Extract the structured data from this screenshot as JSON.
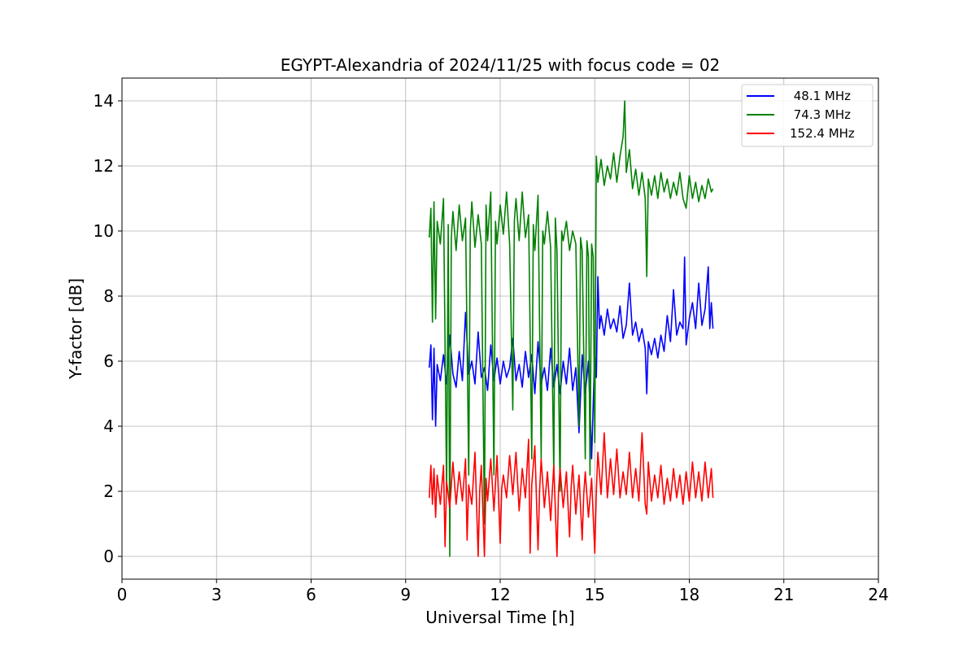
{
  "chart_data": {
    "type": "line",
    "title": "EGYPT-Alexandria of 2024/11/25 with focus code = 02",
    "xlabel": "Universal Time [h]",
    "ylabel": "Y-factor [dB]",
    "xlim": [
      0,
      24
    ],
    "ylim": [
      -0.7,
      14.7
    ],
    "xticks": [
      0,
      3,
      6,
      9,
      12,
      15,
      18,
      21,
      24
    ],
    "yticks": [
      0,
      2,
      4,
      6,
      8,
      10,
      12,
      14
    ],
    "grid": true,
    "legend_position": "top-right",
    "series": [
      {
        "name": " 48.1 MHz",
        "color": "#0000ff",
        "points": [
          [
            9.75,
            5.8
          ],
          [
            9.8,
            6.5
          ],
          [
            9.85,
            4.2
          ],
          [
            9.9,
            6.4
          ],
          [
            9.95,
            4.0
          ],
          [
            10.0,
            5.9
          ],
          [
            10.1,
            5.4
          ],
          [
            10.2,
            6.2
          ],
          [
            10.3,
            5.3
          ],
          [
            10.4,
            6.8
          ],
          [
            10.5,
            5.6
          ],
          [
            10.6,
            5.2
          ],
          [
            10.7,
            6.3
          ],
          [
            10.8,
            5.4
          ],
          [
            10.9,
            7.5
          ],
          [
            11.0,
            5.6
          ],
          [
            11.1,
            6.0
          ],
          [
            11.2,
            5.3
          ],
          [
            11.3,
            6.9
          ],
          [
            11.4,
            5.5
          ],
          [
            11.5,
            5.8
          ],
          [
            11.6,
            5.1
          ],
          [
            11.7,
            6.5
          ],
          [
            11.8,
            5.4
          ],
          [
            11.9,
            6.1
          ],
          [
            12.0,
            5.3
          ],
          [
            12.1,
            6.0
          ],
          [
            12.2,
            5.5
          ],
          [
            12.3,
            5.8
          ],
          [
            12.4,
            6.7
          ],
          [
            12.5,
            5.4
          ],
          [
            12.6,
            5.9
          ],
          [
            12.7,
            5.2
          ],
          [
            12.8,
            6.3
          ],
          [
            12.9,
            5.5
          ],
          [
            13.0,
            6.2
          ],
          [
            13.1,
            5.0
          ],
          [
            13.2,
            6.6
          ],
          [
            13.3,
            5.3
          ],
          [
            13.4,
            5.8
          ],
          [
            13.5,
            5.1
          ],
          [
            13.6,
            6.4
          ],
          [
            13.7,
            5.2
          ],
          [
            13.8,
            5.9
          ],
          [
            13.9,
            5.0
          ],
          [
            14.0,
            6.0
          ],
          [
            14.1,
            5.3
          ],
          [
            14.2,
            6.4
          ],
          [
            14.3,
            5.1
          ],
          [
            14.4,
            5.8
          ],
          [
            14.5,
            3.8
          ],
          [
            14.6,
            6.2
          ],
          [
            14.7,
            5.0
          ],
          [
            14.8,
            6.0
          ],
          [
            14.9,
            3.0
          ],
          [
            15.0,
            6.3
          ],
          [
            15.05,
            5.5
          ],
          [
            15.1,
            8.6
          ],
          [
            15.15,
            7.0
          ],
          [
            15.2,
            7.4
          ],
          [
            15.3,
            6.8
          ],
          [
            15.4,
            7.6
          ],
          [
            15.5,
            7.0
          ],
          [
            15.6,
            7.3
          ],
          [
            15.7,
            6.9
          ],
          [
            15.8,
            7.7
          ],
          [
            15.9,
            6.7
          ],
          [
            16.0,
            7.1
          ],
          [
            16.1,
            8.4
          ],
          [
            16.2,
            6.8
          ],
          [
            16.3,
            7.2
          ],
          [
            16.4,
            6.6
          ],
          [
            16.5,
            7.0
          ],
          [
            16.6,
            6.4
          ],
          [
            16.65,
            5.0
          ],
          [
            16.7,
            6.6
          ],
          [
            16.8,
            6.2
          ],
          [
            16.9,
            6.7
          ],
          [
            17.0,
            6.1
          ],
          [
            17.1,
            6.8
          ],
          [
            17.2,
            6.3
          ],
          [
            17.3,
            7.4
          ],
          [
            17.4,
            6.6
          ],
          [
            17.5,
            8.2
          ],
          [
            17.6,
            6.8
          ],
          [
            17.7,
            7.2
          ],
          [
            17.8,
            7.0
          ],
          [
            17.85,
            9.2
          ],
          [
            17.9,
            6.5
          ],
          [
            18.0,
            7.3
          ],
          [
            18.1,
            7.8
          ],
          [
            18.2,
            7.0
          ],
          [
            18.3,
            8.4
          ],
          [
            18.4,
            7.1
          ],
          [
            18.5,
            7.6
          ],
          [
            18.6,
            8.9
          ],
          [
            18.65,
            7.0
          ],
          [
            18.7,
            7.8
          ],
          [
            18.75,
            7.0
          ]
        ]
      },
      {
        "name": " 74.3 MHz",
        "color": "#008000",
        "points": [
          [
            9.75,
            9.8
          ],
          [
            9.8,
            10.7
          ],
          [
            9.85,
            7.2
          ],
          [
            9.9,
            10.9
          ],
          [
            9.95,
            7.3
          ],
          [
            10.0,
            10.3
          ],
          [
            10.1,
            9.6
          ],
          [
            10.2,
            11.0
          ],
          [
            10.3,
            2.0
          ],
          [
            10.35,
            10.2
          ],
          [
            10.4,
            0.0
          ],
          [
            10.45,
            9.8
          ],
          [
            10.5,
            10.6
          ],
          [
            10.6,
            9.4
          ],
          [
            10.7,
            10.8
          ],
          [
            10.8,
            9.7
          ],
          [
            10.9,
            10.4
          ],
          [
            11.0,
            2.5
          ],
          [
            11.05,
            10.0
          ],
          [
            11.1,
            10.9
          ],
          [
            11.2,
            9.5
          ],
          [
            11.3,
            10.5
          ],
          [
            11.4,
            9.6
          ],
          [
            11.5,
            1.0
          ],
          [
            11.55,
            10.8
          ],
          [
            11.6,
            9.7
          ],
          [
            11.7,
            11.2
          ],
          [
            11.8,
            2.5
          ],
          [
            11.85,
            10.3
          ],
          [
            11.9,
            9.6
          ],
          [
            12.0,
            10.8
          ],
          [
            12.1,
            9.9
          ],
          [
            12.2,
            11.2
          ],
          [
            12.3,
            9.6
          ],
          [
            12.4,
            4.5
          ],
          [
            12.45,
            10.3
          ],
          [
            12.5,
            11.0
          ],
          [
            12.6,
            9.7
          ],
          [
            12.7,
            11.2
          ],
          [
            12.8,
            9.8
          ],
          [
            12.9,
            10.5
          ],
          [
            13.0,
            3.0
          ],
          [
            13.05,
            10.2
          ],
          [
            13.1,
            9.4
          ],
          [
            13.2,
            11.1
          ],
          [
            13.3,
            3.0
          ],
          [
            13.35,
            10.0
          ],
          [
            13.4,
            9.6
          ],
          [
            13.5,
            10.6
          ],
          [
            13.6,
            9.5
          ],
          [
            13.7,
            2.5
          ],
          [
            13.75,
            10.4
          ],
          [
            13.8,
            9.4
          ],
          [
            13.9,
            2.0
          ],
          [
            13.95,
            10.0
          ],
          [
            14.0,
            9.7
          ],
          [
            14.1,
            10.3
          ],
          [
            14.2,
            9.4
          ],
          [
            14.3,
            10.0
          ],
          [
            14.4,
            9.6
          ],
          [
            14.5,
            4.0
          ],
          [
            14.55,
            9.8
          ],
          [
            14.6,
            9.4
          ],
          [
            14.7,
            3.0
          ],
          [
            14.75,
            9.7
          ],
          [
            14.8,
            9.2
          ],
          [
            14.85,
            2.5
          ],
          [
            14.9,
            9.6
          ],
          [
            14.95,
            9.2
          ],
          [
            15.0,
            3.5
          ],
          [
            15.05,
            12.3
          ],
          [
            15.1,
            11.5
          ],
          [
            15.2,
            12.2
          ],
          [
            15.3,
            11.4
          ],
          [
            15.4,
            12.0
          ],
          [
            15.5,
            11.6
          ],
          [
            15.6,
            12.4
          ],
          [
            15.7,
            11.5
          ],
          [
            15.8,
            12.3
          ],
          [
            15.9,
            12.9
          ],
          [
            15.95,
            14.0
          ],
          [
            16.0,
            11.8
          ],
          [
            16.1,
            12.5
          ],
          [
            16.2,
            11.3
          ],
          [
            16.3,
            11.9
          ],
          [
            16.4,
            11.1
          ],
          [
            16.5,
            11.8
          ],
          [
            16.6,
            11.0
          ],
          [
            16.65,
            8.6
          ],
          [
            16.7,
            11.6
          ],
          [
            16.8,
            11.1
          ],
          [
            16.9,
            11.7
          ],
          [
            17.0,
            11.0
          ],
          [
            17.1,
            11.8
          ],
          [
            17.2,
            11.2
          ],
          [
            17.3,
            11.6
          ],
          [
            17.4,
            11.0
          ],
          [
            17.5,
            11.5
          ],
          [
            17.6,
            11.1
          ],
          [
            17.7,
            11.8
          ],
          [
            17.8,
            11.0
          ],
          [
            17.9,
            10.7
          ],
          [
            18.0,
            11.7
          ],
          [
            18.1,
            11.0
          ],
          [
            18.2,
            11.5
          ],
          [
            18.3,
            10.9
          ],
          [
            18.4,
            11.4
          ],
          [
            18.5,
            11.0
          ],
          [
            18.6,
            11.6
          ],
          [
            18.7,
            11.2
          ],
          [
            18.75,
            11.3
          ]
        ]
      },
      {
        "name": "152.4 MHz",
        "color": "#ff0000",
        "points": [
          [
            9.75,
            1.8
          ],
          [
            9.8,
            2.8
          ],
          [
            9.85,
            1.6
          ],
          [
            9.9,
            2.7
          ],
          [
            9.95,
            1.2
          ],
          [
            10.0,
            2.5
          ],
          [
            10.1,
            1.6
          ],
          [
            10.2,
            2.8
          ],
          [
            10.25,
            0.3
          ],
          [
            10.3,
            2.3
          ],
          [
            10.4,
            1.5
          ],
          [
            10.5,
            2.9
          ],
          [
            10.6,
            1.6
          ],
          [
            10.7,
            2.6
          ],
          [
            10.8,
            1.7
          ],
          [
            10.9,
            3.0
          ],
          [
            10.95,
            0.5
          ],
          [
            11.0,
            2.2
          ],
          [
            11.1,
            1.6
          ],
          [
            11.2,
            3.2
          ],
          [
            11.3,
            0.0
          ],
          [
            11.35,
            2.0
          ],
          [
            11.4,
            2.8
          ],
          [
            11.5,
            0.0
          ],
          [
            11.55,
            2.4
          ],
          [
            11.6,
            1.7
          ],
          [
            11.7,
            3.0
          ],
          [
            11.8,
            1.4
          ],
          [
            11.9,
            3.1
          ],
          [
            12.0,
            0.4
          ],
          [
            12.05,
            2.1
          ],
          [
            12.1,
            2.5
          ],
          [
            12.2,
            1.8
          ],
          [
            12.3,
            3.1
          ],
          [
            12.4,
            1.9
          ],
          [
            12.5,
            3.2
          ],
          [
            12.6,
            1.4
          ],
          [
            12.7,
            2.7
          ],
          [
            12.8,
            1.8
          ],
          [
            12.9,
            3.6
          ],
          [
            12.95,
            0.1
          ],
          [
            13.0,
            2.2
          ],
          [
            13.1,
            3.4
          ],
          [
            13.2,
            0.2
          ],
          [
            13.25,
            2.0
          ],
          [
            13.3,
            3.0
          ],
          [
            13.4,
            1.5
          ],
          [
            13.5,
            2.6
          ],
          [
            13.6,
            1.1
          ],
          [
            13.7,
            2.8
          ],
          [
            13.8,
            0.0
          ],
          [
            13.85,
            2.0
          ],
          [
            13.9,
            2.7
          ],
          [
            14.0,
            1.5
          ],
          [
            14.1,
            2.6
          ],
          [
            14.2,
            0.6
          ],
          [
            14.25,
            2.1
          ],
          [
            14.3,
            2.8
          ],
          [
            14.4,
            1.3
          ],
          [
            14.5,
            2.5
          ],
          [
            14.6,
            0.5
          ],
          [
            14.65,
            1.9
          ],
          [
            14.7,
            2.6
          ],
          [
            14.8,
            1.2
          ],
          [
            14.9,
            2.4
          ],
          [
            15.0,
            0.1
          ],
          [
            15.05,
            2.0
          ],
          [
            15.1,
            3.2
          ],
          [
            15.2,
            1.9
          ],
          [
            15.3,
            3.8
          ],
          [
            15.4,
            1.8
          ],
          [
            15.5,
            3.0
          ],
          [
            15.6,
            1.9
          ],
          [
            15.7,
            3.3
          ],
          [
            15.8,
            1.8
          ],
          [
            15.9,
            2.6
          ],
          [
            16.0,
            1.9
          ],
          [
            16.1,
            3.2
          ],
          [
            16.2,
            1.8
          ],
          [
            16.3,
            2.7
          ],
          [
            16.4,
            1.7
          ],
          [
            16.5,
            3.8
          ],
          [
            16.6,
            1.6
          ],
          [
            16.65,
            1.3
          ],
          [
            16.7,
            2.9
          ],
          [
            16.8,
            1.7
          ],
          [
            16.9,
            2.5
          ],
          [
            17.0,
            1.8
          ],
          [
            17.1,
            2.8
          ],
          [
            17.2,
            1.6
          ],
          [
            17.3,
            2.4
          ],
          [
            17.4,
            1.7
          ],
          [
            17.5,
            2.7
          ],
          [
            17.6,
            1.8
          ],
          [
            17.7,
            2.5
          ],
          [
            17.8,
            1.6
          ],
          [
            17.9,
            2.6
          ],
          [
            18.0,
            1.7
          ],
          [
            18.1,
            2.9
          ],
          [
            18.2,
            1.8
          ],
          [
            18.3,
            2.6
          ],
          [
            18.4,
            1.7
          ],
          [
            18.5,
            2.9
          ],
          [
            18.6,
            1.8
          ],
          [
            18.7,
            2.7
          ],
          [
            18.75,
            1.8
          ]
        ]
      }
    ]
  }
}
